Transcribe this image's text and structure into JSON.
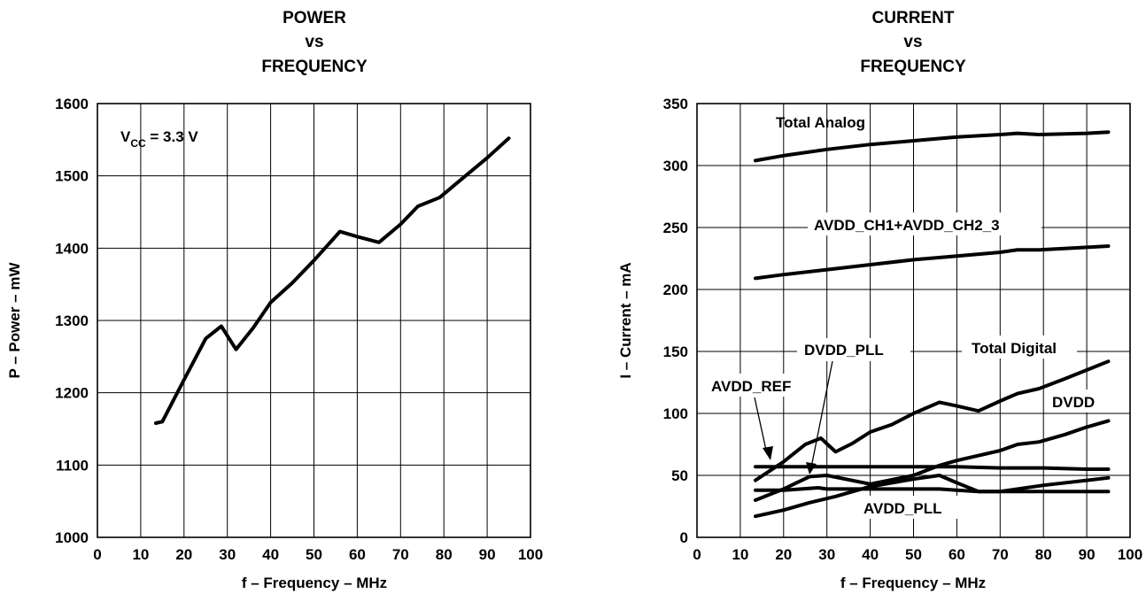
{
  "chart_data": [
    {
      "type": "line",
      "title": [
        "POWER",
        "vs",
        "FREQUENCY"
      ],
      "xlabel": "f – Frequency – MHz",
      "ylabel": "P – Power – mW",
      "xlim": [
        0,
        100
      ],
      "ylim": [
        1000,
        1600
      ],
      "xticks": [
        0,
        10,
        20,
        30,
        40,
        50,
        60,
        70,
        80,
        90,
        100
      ],
      "yticks": [
        1000,
        1100,
        1200,
        1300,
        1400,
        1500,
        1600
      ],
      "grid": true,
      "annotation": {
        "main": "V",
        "sub": "CC",
        "rest": " = 3.3 V"
      },
      "series": [
        {
          "x": [
            13.5,
            15,
            20,
            25,
            28.6,
            32,
            36,
            40,
            45,
            50,
            56,
            60,
            65,
            70,
            74,
            79,
            85,
            90,
            95
          ],
          "y": [
            1158,
            1160,
            1218,
            1275,
            1292,
            1260,
            1290,
            1325,
            1352,
            1383,
            1423,
            1416,
            1408,
            1433,
            1458,
            1470,
            1500,
            1525,
            1552
          ]
        }
      ]
    },
    {
      "type": "line",
      "title": [
        "CURRENT",
        "vs",
        "FREQUENCY"
      ],
      "xlabel": "f – Frequency – MHz",
      "ylabel": "I – Current – mA",
      "xlim": [
        0,
        100
      ],
      "ylim": [
        0,
        350
      ],
      "xticks": [
        0,
        10,
        20,
        30,
        40,
        50,
        60,
        70,
        80,
        90,
        100
      ],
      "yticks": [
        0,
        50,
        100,
        150,
        200,
        250,
        300,
        350
      ],
      "grid": true,
      "series": [
        {
          "name": "Total Analog",
          "x": [
            13.5,
            20,
            30,
            40,
            50,
            60,
            70,
            74,
            79,
            90,
            95
          ],
          "y": [
            304,
            308,
            313,
            317,
            320,
            323,
            325,
            326,
            325,
            326,
            327
          ]
        },
        {
          "name": "AVDD_CH1+AVDD_CH2_3",
          "x": [
            13.5,
            20,
            30,
            40,
            50,
            60,
            70,
            74,
            79,
            90,
            95
          ],
          "y": [
            209,
            212,
            216,
            220,
            224,
            227,
            230,
            232,
            232,
            234,
            235
          ]
        },
        {
          "name": "Total Digital",
          "x": [
            13.5,
            20,
            25,
            28.6,
            32,
            36,
            40,
            45,
            50,
            56,
            60,
            65,
            70,
            74,
            79,
            85,
            90,
            95
          ],
          "y": [
            46,
            61,
            75,
            80,
            69,
            76,
            85,
            91,
            100,
            109,
            106,
            102,
            110,
            116,
            120,
            128,
            135,
            142
          ]
        },
        {
          "name": "DVDD",
          "x": [
            13.5,
            20,
            26,
            30,
            40,
            50,
            56,
            60,
            70,
            74,
            79,
            85,
            90,
            95
          ],
          "y": [
            30,
            39,
            49,
            50,
            43,
            50,
            58,
            62,
            70,
            75,
            77,
            83,
            89,
            94
          ]
        },
        {
          "name": "AVDD_REF",
          "x": [
            13.5,
            20,
            30,
            40,
            50,
            60,
            70,
            80,
            90,
            95
          ],
          "y": [
            57,
            57,
            57,
            57,
            57,
            57,
            56,
            56,
            55,
            55
          ]
        },
        {
          "name": "DVDD_PLL",
          "x": [
            13.5,
            20,
            28,
            30,
            40,
            50,
            56,
            60,
            65,
            70,
            80,
            90,
            95
          ],
          "y": [
            38,
            38,
            40,
            39,
            39,
            39,
            39,
            38,
            37,
            37,
            37,
            37,
            37
          ]
        },
        {
          "name": "AVDD_PLL",
          "x": [
            13.5,
            20,
            26,
            32,
            40,
            50,
            56,
            60,
            65,
            70,
            80,
            90,
            95
          ],
          "y": [
            17,
            22,
            28,
            33,
            41,
            47,
            50,
            44,
            37,
            37,
            42,
            46,
            48
          ]
        }
      ],
      "labels": {
        "total_analog": "Total Analog",
        "avdd_ch": "AVDD_CH1+AVDD_CH2_3",
        "total_digital": "Total Digital",
        "dvdd": "DVDD",
        "dvdd_pll": "DVDD_PLL",
        "avdd_ref": "AVDD_REF",
        "avdd_pll": "AVDD_PLL"
      }
    }
  ]
}
